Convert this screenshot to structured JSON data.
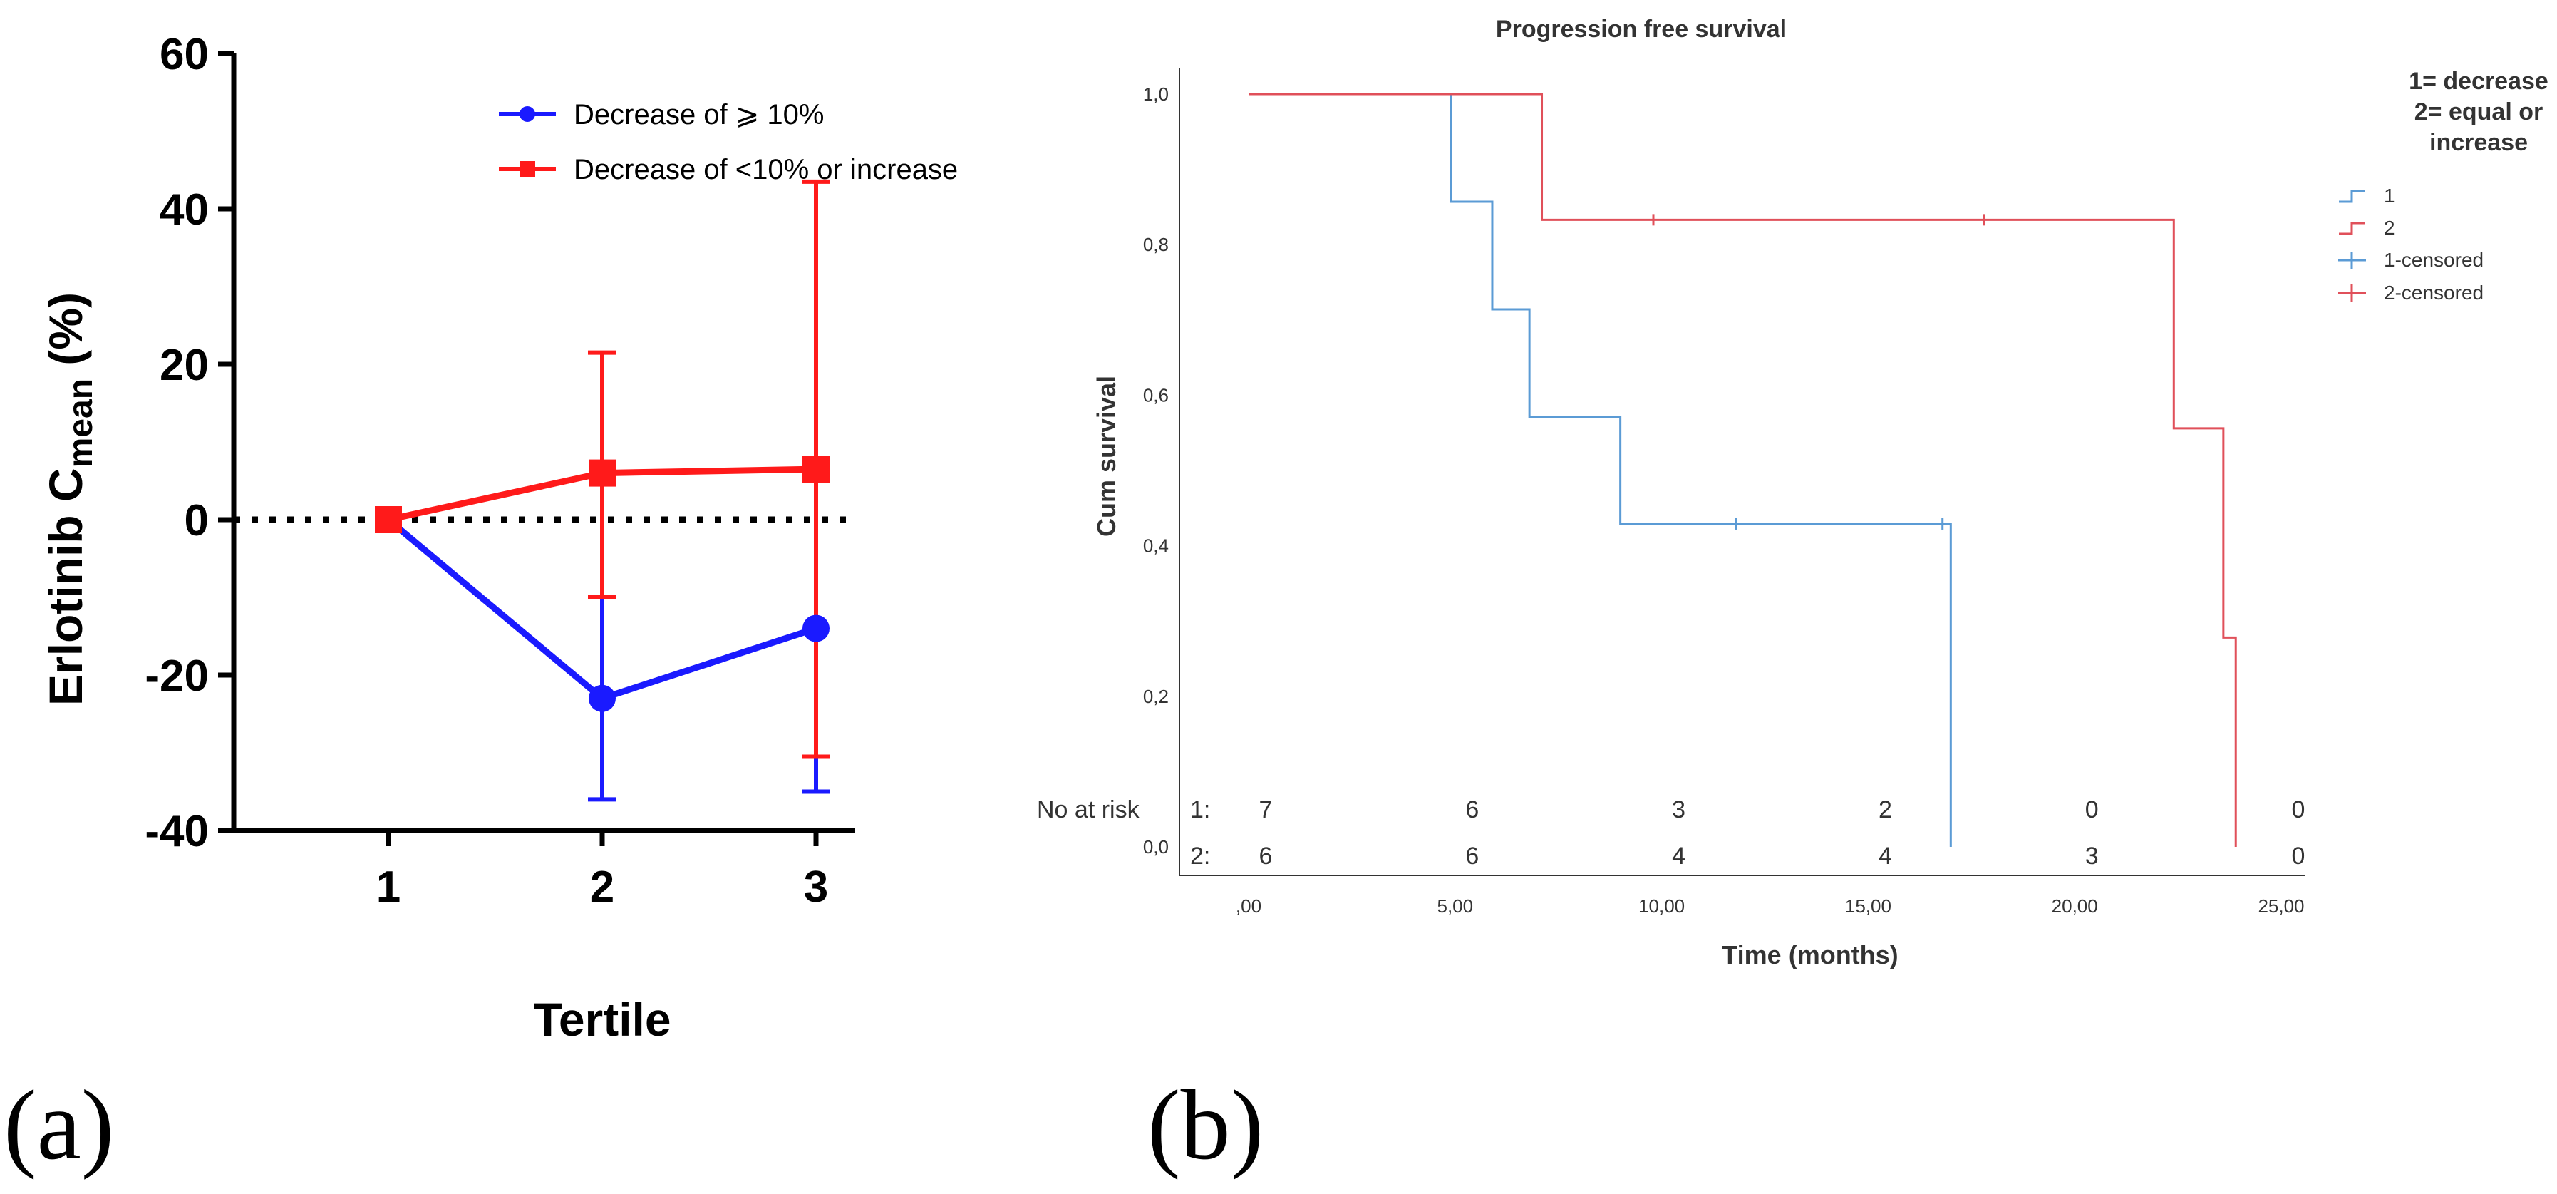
{
  "colors": {
    "series_a1": "#1a1aff",
    "series_a2": "#ff1a1a",
    "series_b1": "#5b9bd5",
    "series_b2": "#e0505a",
    "axis": "#000000",
    "text_b": "#333333"
  },
  "chart_data": [
    {
      "type": "line",
      "panel_label": "(a)",
      "title": "",
      "ylabel_prefix": "Erlotinib C",
      "ylabel_sub": "mean",
      "ylabel_suffix": " (%)",
      "xlabel": "Tertile",
      "categories": [
        "1",
        "2",
        "3"
      ],
      "ylim": [
        -40,
        60
      ],
      "yticks": [
        -40,
        -20,
        0,
        20,
        40,
        60
      ],
      "yticklabels": [
        "-40",
        "-20",
        "0",
        "20",
        "40",
        "60"
      ],
      "reference_line": 0,
      "series": [
        {
          "name": "Decrease of ⩾ 10%",
          "marker": "circle",
          "values": [
            0,
            -23,
            -14
          ],
          "err_low": [
            0,
            -36,
            -35
          ],
          "err_high": [
            0,
            -10,
            7
          ]
        },
        {
          "name": "Decrease of <10% or increase",
          "marker": "square",
          "values": [
            0,
            6,
            6.5
          ],
          "err_low": [
            0,
            -10,
            -30.5
          ],
          "err_high": [
            0,
            21.5,
            43.5
          ]
        }
      ]
    },
    {
      "type": "line",
      "subtype": "kaplan-meier",
      "panel_label": "(b)",
      "title": "Progression free survival",
      "xlabel": "Time (months)",
      "ylabel": "Cum survival",
      "xlim": [
        -1,
        26
      ],
      "ylim": [
        0,
        1.05
      ],
      "xticks": [
        0,
        5,
        10,
        15,
        20,
        25
      ],
      "xticklabels": [
        ",00",
        "5,00",
        "10,00",
        "15,00",
        "20,00",
        "25,00"
      ],
      "yticks": [
        0,
        0.2,
        0.4,
        0.6,
        0.8,
        1.0
      ],
      "yticklabels": [
        "0,0",
        "0,2",
        "0,4",
        "0,6",
        "0,8",
        "1,0"
      ],
      "legend_title": [
        "1= decrease",
        "2= equal or",
        "increase"
      ],
      "legend": [
        "1",
        "2",
        "1-censored",
        "2-censored"
      ],
      "series": [
        {
          "name": "1",
          "steps": [
            [
              0,
              1.0
            ],
            [
              4.9,
              0.857
            ],
            [
              5.9,
              0.714
            ],
            [
              6.8,
              0.571
            ],
            [
              9.0,
              0.429
            ],
            [
              17.0,
              0.0
            ]
          ],
          "censored": [
            [
              11.8,
              0.429
            ],
            [
              16.8,
              0.429
            ]
          ]
        },
        {
          "name": "2",
          "steps": [
            [
              0,
              1.0
            ],
            [
              7.1,
              0.833
            ],
            [
              22.4,
              0.556
            ],
            [
              23.6,
              0.278
            ],
            [
              23.9,
              0.0
            ]
          ],
          "censored": [
            [
              9.8,
              0.833
            ],
            [
              17.8,
              0.833
            ]
          ]
        }
      ],
      "at_risk": {
        "label": "No at risk",
        "row_labels": [
          "1:",
          "2:"
        ],
        "times": [
          0,
          5,
          10,
          15,
          20,
          25
        ],
        "rows": [
          [
            "7",
            "6",
            "3",
            "2",
            "0",
            "0"
          ],
          [
            "6",
            "6",
            "4",
            "4",
            "3",
            "0"
          ]
        ]
      }
    }
  ]
}
